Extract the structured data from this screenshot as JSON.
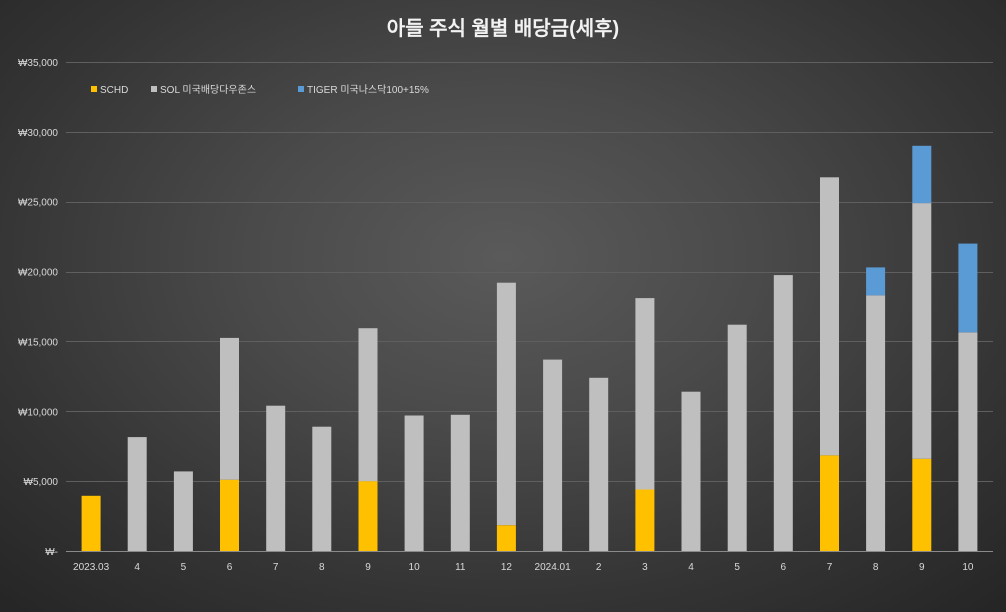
{
  "chart_data": {
    "type": "bar",
    "stacked": true,
    "title": "아들 주식 월별 배당금(세후)",
    "xlabel": "",
    "ylabel": "",
    "ylim": [
      0,
      35000
    ],
    "grid": true,
    "legend_position": "top-left",
    "ytick_values": [
      0,
      5000,
      10000,
      15000,
      20000,
      25000,
      30000,
      35000
    ],
    "ytick_labels": [
      "₩-",
      "₩5,000",
      "₩10,000",
      "₩15,000",
      "₩20,000",
      "₩25,000",
      "₩30,000",
      "₩35,000"
    ],
    "categories": [
      "2023.03",
      "4",
      "5",
      "6",
      "7",
      "8",
      "9",
      "10",
      "11",
      "12",
      "2024.01",
      "2",
      "3",
      "4",
      "5",
      "6",
      "7",
      "8",
      "9",
      "10"
    ],
    "series": [
      {
        "name": "SCHD",
        "color": "#FFC000",
        "values": [
          3950,
          0,
          0,
          5100,
          0,
          0,
          5000,
          0,
          0,
          1850,
          0,
          0,
          4400,
          0,
          0,
          0,
          6850,
          0,
          6600,
          0
        ]
      },
      {
        "name": "SOL 미국배당다우존스",
        "color": "#BFBFBF",
        "values": [
          0,
          8150,
          5700,
          10150,
          10400,
          8900,
          10950,
          9700,
          9750,
          17350,
          13700,
          12400,
          13700,
          11400,
          16200,
          19750,
          19900,
          18300,
          18300,
          15650
        ]
      },
      {
        "name": "TIGER 미국나스닥100+15%",
        "color": "#5B9BD5",
        "values": [
          0,
          0,
          0,
          0,
          0,
          0,
          0,
          0,
          0,
          0,
          0,
          0,
          0,
          0,
          0,
          0,
          0,
          2000,
          4100,
          6350
        ]
      }
    ]
  }
}
